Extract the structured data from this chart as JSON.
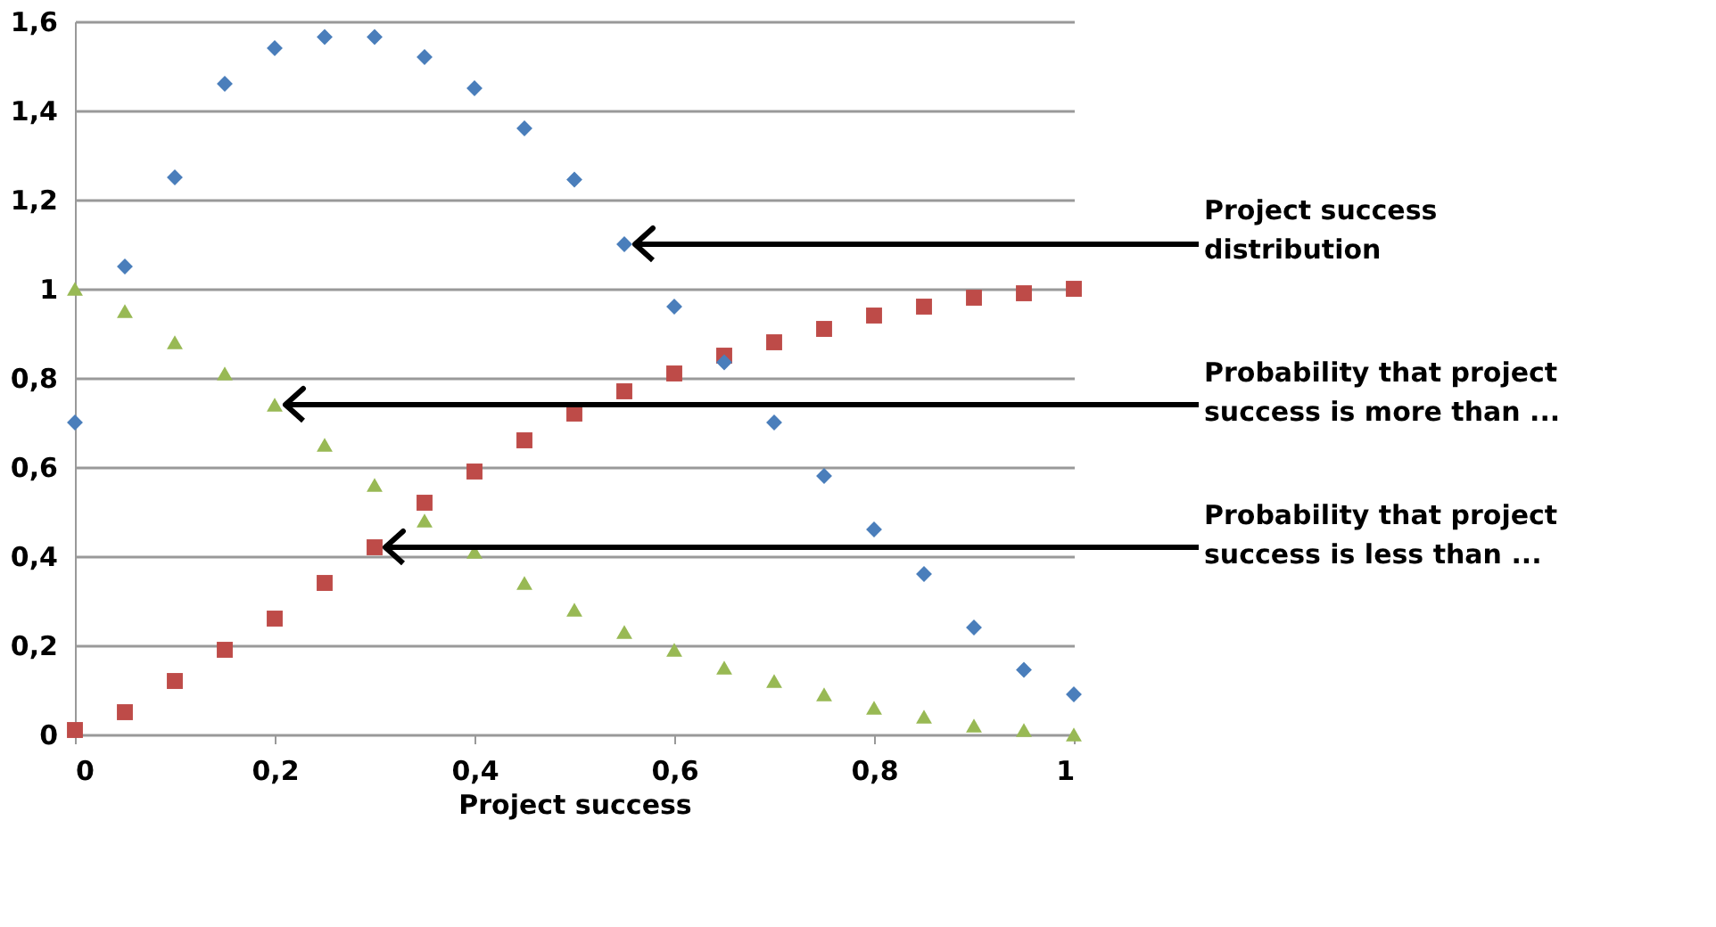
{
  "chart_data": {
    "type": "scatter",
    "xlabel": "Project success",
    "x": [
      0,
      0.05,
      0.1,
      0.15,
      0.2,
      0.25,
      0.3,
      0.35,
      0.4,
      0.45,
      0.5,
      0.55,
      0.6,
      0.65,
      0.7,
      0.75,
      0.8,
      0.85,
      0.9,
      0.95,
      1
    ],
    "series": [
      {
        "color": "#4a7ebb",
        "marker": "diamond",
        "values": [
          0.7,
          1.05,
          1.25,
          1.46,
          1.54,
          1.565,
          1.565,
          1.52,
          1.45,
          1.36,
          1.245,
          1.1,
          0.96,
          0.835,
          0.7,
          0.58,
          0.46,
          0.36,
          0.24,
          0.145,
          0.09
        ]
      },
      {
        "color": "#be4b48",
        "marker": "square",
        "values": [
          0.01,
          0.05,
          0.12,
          0.19,
          0.26,
          0.34,
          0.42,
          0.52,
          0.59,
          0.66,
          0.72,
          0.77,
          0.81,
          0.85,
          0.88,
          0.91,
          0.94,
          0.96,
          0.98,
          0.99,
          1.0
        ]
      },
      {
        "color": "#98b954",
        "marker": "triangle",
        "values": [
          1.0,
          0.95,
          0.88,
          0.81,
          0.74,
          0.65,
          0.56,
          0.48,
          0.41,
          0.34,
          0.28,
          0.23,
          0.19,
          0.15,
          0.12,
          0.09,
          0.06,
          0.04,
          0.02,
          0.01,
          0.0
        ]
      }
    ],
    "annotations": [
      "Project success distribution",
      "Probability that project success is more than ...",
      "Probability that project success is less than ..."
    ],
    "xlim": [
      0,
      1
    ],
    "ylim": [
      0,
      1.6
    ],
    "xticks": [
      0,
      {
        "value": 0.2,
        "label": "0,2"
      },
      {
        "value": 0.4,
        "label": "0,4"
      },
      {
        "value": 0.6,
        "label": "0,6"
      },
      {
        "value": 0.8,
        "label": "0,8"
      },
      1
    ],
    "yticks": [
      0,
      {
        "value": 0.2,
        "label": "0,2"
      },
      {
        "value": 0.4,
        "label": "0,4"
      },
      {
        "value": 0.6,
        "label": "0,6"
      },
      {
        "value": 0.8,
        "label": "0,8"
      },
      1,
      {
        "value": 1.2,
        "label": "1,2"
      },
      {
        "value": 1.4,
        "label": "1,4"
      },
      {
        "value": 1.6,
        "label": "1,6"
      }
    ],
    "grid": "y"
  }
}
